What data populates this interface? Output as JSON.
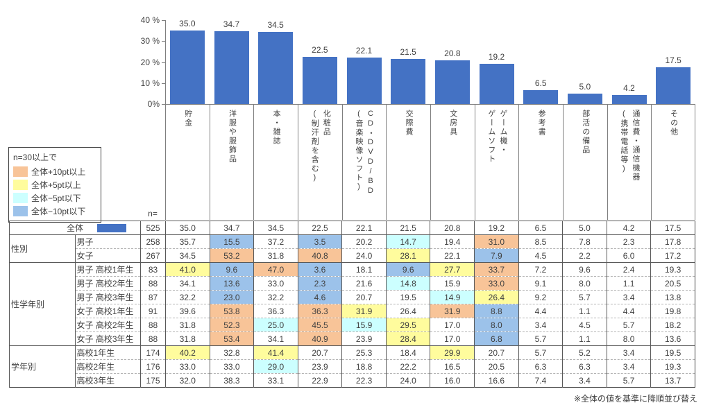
{
  "chart_data": {
    "type": "bar",
    "title": "",
    "categories": [
      "貯金",
      "洋服や服飾品",
      "本・雑誌",
      "化粧品(制汗剤を含む)",
      "CD・DVD/BD(音楽映像ソフト)",
      "交際費",
      "文房具",
      "ゲーム機・ゲームソフト",
      "参考書",
      "部活の備品",
      "通信費・通信機器(携帯電話等)",
      "その他"
    ],
    "category_display": [
      "貯金",
      "洋服や服飾品",
      "本・雑誌",
      "化粧品\n(制汗剤を含む)",
      "CD・DVD/BD\n(音楽映像ソフト)",
      "交際費",
      "文房具",
      "ゲーム機・\nゲームソフト",
      "参考書",
      "部活の備品",
      "通信費・通信機器\n(携帯電話等)",
      "その他"
    ],
    "values": [
      35.0,
      34.7,
      34.5,
      22.5,
      22.1,
      21.5,
      20.8,
      19.2,
      6.5,
      5.0,
      4.2,
      17.5
    ],
    "value_labels": [
      "35.0",
      "34.7",
      "34.5",
      "22.5",
      "22.1",
      "21.5",
      "20.8",
      "19.2",
      "6.5",
      "5.0",
      "4.2",
      "17.5"
    ],
    "ylim": [
      0,
      40
    ],
    "ytick_labels": [
      "40 %",
      "30 %",
      "20 %",
      "10 %",
      "0%"
    ],
    "grid": false,
    "legend_position": "none",
    "bar_color": "#4472C4"
  },
  "legend": {
    "title": "n=30以上で",
    "items": [
      {
        "key": "p10",
        "label": "全体+10pt以上",
        "color": "#F8C498"
      },
      {
        "key": "p5",
        "label": "全体+5pt以上",
        "color": "#FFFC9D"
      },
      {
        "key": "m5",
        "label": "全体−5pt以下",
        "color": "#CCFFFF"
      },
      {
        "key": "m10",
        "label": "全体−10pt以下",
        "color": "#9CC2EA"
      }
    ]
  },
  "table": {
    "n_header": "n=",
    "total_swatch_color": "#4472C4",
    "rows": [
      {
        "group": null,
        "label": "全体",
        "total": true,
        "sep": "solid",
        "n": "525",
        "values": [
          "35.0",
          "34.7",
          "34.5",
          "22.5",
          "22.1",
          "21.5",
          "20.8",
          "19.2",
          "6.5",
          "5.0",
          "4.2",
          "17.5"
        ],
        "highlights": [
          "",
          "",
          "",
          "",
          "",
          "",
          "",
          "",
          "",
          "",
          "",
          ""
        ]
      },
      {
        "group": "性別",
        "group_span": 2,
        "label": "男子",
        "sep": "solid",
        "n": "258",
        "values": [
          "35.7",
          "15.5",
          "37.2",
          "3.5",
          "20.2",
          "14.7",
          "19.4",
          "31.0",
          "8.5",
          "7.8",
          "2.3",
          "17.8"
        ],
        "highlights": [
          "",
          "m10",
          "",
          "m10",
          "",
          "m5",
          "",
          "p10",
          "",
          "",
          "",
          ""
        ]
      },
      {
        "group": null,
        "label": "女子",
        "sep": "dashed",
        "n": "267",
        "values": [
          "34.5",
          "53.2",
          "31.8",
          "40.8",
          "24.0",
          "28.1",
          "22.1",
          "7.9",
          "4.5",
          "2.2",
          "6.0",
          "17.2"
        ],
        "highlights": [
          "",
          "p10",
          "",
          "p10",
          "",
          "p5",
          "",
          "m10",
          "",
          "",
          "",
          ""
        ]
      },
      {
        "group": "性学年別",
        "group_span": 6,
        "label": "男子 高校1年生",
        "sep": "solid",
        "n": "83",
        "values": [
          "41.0",
          "9.6",
          "47.0",
          "3.6",
          "18.1",
          "9.6",
          "27.7",
          "33.7",
          "7.2",
          "9.6",
          "2.4",
          "19.3"
        ],
        "highlights": [
          "p5",
          "m10",
          "p10",
          "m10",
          "",
          "m10",
          "p5",
          "p10",
          "",
          "",
          "",
          ""
        ]
      },
      {
        "group": null,
        "label": "男子 高校2年生",
        "sep": "dashed",
        "n": "88",
        "values": [
          "34.1",
          "13.6",
          "33.0",
          "2.3",
          "21.6",
          "14.8",
          "15.9",
          "33.0",
          "9.1",
          "8.0",
          "1.1",
          "20.5"
        ],
        "highlights": [
          "",
          "m10",
          "",
          "m10",
          "",
          "m5",
          "",
          "p10",
          "",
          "",
          "",
          ""
        ]
      },
      {
        "group": null,
        "label": "男子 高校3年生",
        "sep": "dashed",
        "n": "87",
        "values": [
          "32.2",
          "23.0",
          "32.2",
          "4.6",
          "20.7",
          "19.5",
          "14.9",
          "26.4",
          "9.2",
          "5.7",
          "3.4",
          "13.8"
        ],
        "highlights": [
          "",
          "m10",
          "",
          "m10",
          "",
          "",
          "m5",
          "p5",
          "",
          "",
          "",
          ""
        ]
      },
      {
        "group": null,
        "label": "女子 高校1年生",
        "sep": "dashed",
        "n": "91",
        "values": [
          "39.6",
          "53.8",
          "36.3",
          "36.3",
          "31.9",
          "26.4",
          "31.9",
          "8.8",
          "4.4",
          "1.1",
          "4.4",
          "19.8"
        ],
        "highlights": [
          "",
          "p10",
          "",
          "p10",
          "p5",
          "",
          "p10",
          "m10",
          "",
          "",
          "",
          ""
        ]
      },
      {
        "group": null,
        "label": "女子 高校2年生",
        "sep": "dashed",
        "n": "88",
        "values": [
          "31.8",
          "52.3",
          "25.0",
          "45.5",
          "15.9",
          "29.5",
          "17.0",
          "8.0",
          "3.4",
          "4.5",
          "5.7",
          "18.2"
        ],
        "highlights": [
          "",
          "p10",
          "m5",
          "p10",
          "m5",
          "p5",
          "",
          "m10",
          "",
          "",
          "",
          ""
        ]
      },
      {
        "group": null,
        "label": "女子 高校3年生",
        "sep": "dashed",
        "n": "88",
        "values": [
          "31.8",
          "53.4",
          "34.1",
          "40.9",
          "23.9",
          "28.4",
          "17.0",
          "6.8",
          "5.7",
          "1.1",
          "8.0",
          "13.6"
        ],
        "highlights": [
          "",
          "p10",
          "",
          "p10",
          "",
          "p5",
          "",
          "m10",
          "",
          "",
          "",
          ""
        ]
      },
      {
        "group": "学年別",
        "group_span": 3,
        "label": "高校1年生",
        "sep": "solid",
        "n": "174",
        "values": [
          "40.2",
          "32.8",
          "41.4",
          "20.7",
          "25.3",
          "18.4",
          "29.9",
          "20.7",
          "5.7",
          "5.2",
          "3.4",
          "19.5"
        ],
        "highlights": [
          "p5",
          "",
          "p5",
          "",
          "",
          "",
          "p5",
          "",
          "",
          "",
          "",
          ""
        ]
      },
      {
        "group": null,
        "label": "高校2年生",
        "sep": "dashed",
        "n": "176",
        "values": [
          "33.0",
          "33.0",
          "29.0",
          "23.9",
          "18.8",
          "22.2",
          "16.5",
          "20.5",
          "6.3",
          "6.3",
          "3.4",
          "19.3"
        ],
        "highlights": [
          "",
          "",
          "m5",
          "",
          "",
          "",
          "",
          "",
          "",
          "",
          "",
          ""
        ]
      },
      {
        "group": null,
        "label": "高校3年生",
        "sep": "dashed",
        "n": "175",
        "values": [
          "32.0",
          "38.3",
          "33.1",
          "22.9",
          "22.3",
          "24.0",
          "16.0",
          "16.6",
          "7.4",
          "3.4",
          "5.7",
          "13.7"
        ],
        "highlights": [
          "",
          "",
          "",
          "",
          "",
          "",
          "",
          "",
          "",
          "",
          "",
          ""
        ]
      }
    ]
  },
  "footnote": "※全体の値を基準に降順並び替え"
}
